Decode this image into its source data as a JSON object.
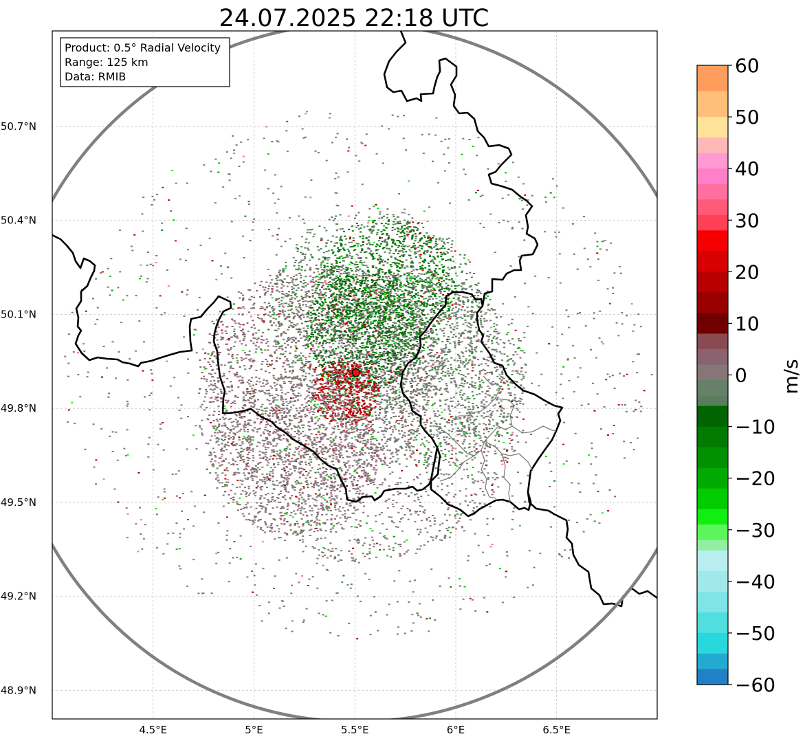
{
  "title": "24.07.2025 22:18 UTC",
  "info_box": {
    "line1": "Product: 0.5° Radial Velocity",
    "line2": "Range: 125 km",
    "line3": "Data: RMIB"
  },
  "map": {
    "lon_range": [
      4.0,
      7.0
    ],
    "lat_range": [
      48.8,
      51.0
    ],
    "x_ticks": [
      {
        "value": 4.5,
        "label": "4.5°E"
      },
      {
        "value": 5.0,
        "label": "5°E"
      },
      {
        "value": 5.5,
        "label": "5.5°E"
      },
      {
        "value": 6.0,
        "label": "6°E"
      },
      {
        "value": 6.5,
        "label": "6.5°E"
      }
    ],
    "y_ticks": [
      {
        "value": 50.7,
        "label": "50.7°N"
      },
      {
        "value": 50.4,
        "label": "50.4°N"
      },
      {
        "value": 50.1,
        "label": "50.1°N"
      },
      {
        "value": 49.8,
        "label": "49.8°N"
      },
      {
        "value": 49.5,
        "label": "49.5°N"
      },
      {
        "value": 49.2,
        "label": "49.2°N"
      },
      {
        "value": 48.9,
        "label": "48.9°N"
      }
    ],
    "grid": true,
    "radar_site": {
      "lon": 5.505,
      "lat": 49.914,
      "marker_color": "#e81010"
    },
    "range_ring": {
      "range_km": 125,
      "color": "#808080"
    }
  },
  "colorbar": {
    "label": "m/s",
    "min": -60,
    "max": 60,
    "ticks": [
      {
        "value": 60,
        "label": "60"
      },
      {
        "value": 50,
        "label": "50"
      },
      {
        "value": 40,
        "label": "40"
      },
      {
        "value": 30,
        "label": "30"
      },
      {
        "value": 20,
        "label": "20"
      },
      {
        "value": 10,
        "label": "10"
      },
      {
        "value": 0,
        "label": "0"
      },
      {
        "value": -10,
        "label": "−10"
      },
      {
        "value": -20,
        "label": "−20"
      },
      {
        "value": -30,
        "label": "−30"
      },
      {
        "value": -40,
        "label": "−40"
      },
      {
        "value": -50,
        "label": "−50"
      },
      {
        "value": -60,
        "label": "−60"
      }
    ],
    "bands": [
      {
        "from": 55,
        "to": 60,
        "color": "#ff9e5c"
      },
      {
        "from": 50,
        "to": 55,
        "color": "#ffbf7a"
      },
      {
        "from": 46,
        "to": 50,
        "color": "#ffe39a"
      },
      {
        "from": 43,
        "to": 46,
        "color": "#ffb8b8"
      },
      {
        "from": 40,
        "to": 43,
        "color": "#ff9ad2"
      },
      {
        "from": 37,
        "to": 40,
        "color": "#ff80c8"
      },
      {
        "from": 34,
        "to": 37,
        "color": "#ff70a0"
      },
      {
        "from": 31,
        "to": 34,
        "color": "#ff5a78"
      },
      {
        "from": 28,
        "to": 31,
        "color": "#ff4055"
      },
      {
        "from": 24,
        "to": 28,
        "color": "#f50000"
      },
      {
        "from": 20,
        "to": 24,
        "color": "#d80000"
      },
      {
        "from": 16,
        "to": 20,
        "color": "#b80000"
      },
      {
        "from": 12,
        "to": 16,
        "color": "#980000"
      },
      {
        "from": 8,
        "to": 12,
        "color": "#700000"
      },
      {
        "from": 5,
        "to": 8,
        "color": "#8a4a52"
      },
      {
        "from": 2,
        "to": 5,
        "color": "#8a6270"
      },
      {
        "from": -1,
        "to": 2,
        "color": "#86767a"
      },
      {
        "from": -4,
        "to": -1,
        "color": "#66806a"
      },
      {
        "from": -6,
        "to": -4,
        "color": "#5a7e5c"
      },
      {
        "from": -10,
        "to": -6,
        "color": "#006400"
      },
      {
        "from": -14,
        "to": -10,
        "color": "#007a00"
      },
      {
        "from": -18,
        "to": -14,
        "color": "#009000"
      },
      {
        "from": -22,
        "to": -18,
        "color": "#00aa00"
      },
      {
        "from": -26,
        "to": -22,
        "color": "#00cc00"
      },
      {
        "from": -29,
        "to": -26,
        "color": "#10f010"
      },
      {
        "from": -32,
        "to": -29,
        "color": "#5cf55c"
      },
      {
        "from": -34,
        "to": -32,
        "color": "#90f0a0"
      },
      {
        "from": -38,
        "to": -34,
        "color": "#b8eef0"
      },
      {
        "from": -42,
        "to": -38,
        "color": "#a0e8ea"
      },
      {
        "from": -46,
        "to": -42,
        "color": "#7ee4e6"
      },
      {
        "from": -50,
        "to": -46,
        "color": "#50dede"
      },
      {
        "from": -54,
        "to": -50,
        "color": "#28d8dc"
      },
      {
        "from": -57,
        "to": -54,
        "color": "#22aad0"
      },
      {
        "from": -60,
        "to": -57,
        "color": "#2080c8"
      }
    ]
  },
  "velocity_clusters": [
    {
      "lon": 5.52,
      "lat": 49.8,
      "r_km": 58,
      "color": "#86767a"
    },
    {
      "lon": 5.3,
      "lat": 49.9,
      "r_km": 42,
      "color": "#8a6270"
    },
    {
      "lon": 5.6,
      "lat": 50.12,
      "r_km": 38,
      "color": "#5a7e5c"
    },
    {
      "lon": 5.85,
      "lat": 49.92,
      "r_km": 36,
      "color": "#66806a"
    },
    {
      "lon": 5.55,
      "lat": 50.05,
      "r_km": 22,
      "color": "#006400"
    },
    {
      "lon": 5.65,
      "lat": 50.2,
      "r_km": 25,
      "color": "#007a00"
    },
    {
      "lon": 5.45,
      "lat": 49.85,
      "r_km": 12,
      "color": "#b80000"
    },
    {
      "lon": 5.2,
      "lat": 49.65,
      "r_km": 30,
      "color": "#86767a"
    }
  ]
}
